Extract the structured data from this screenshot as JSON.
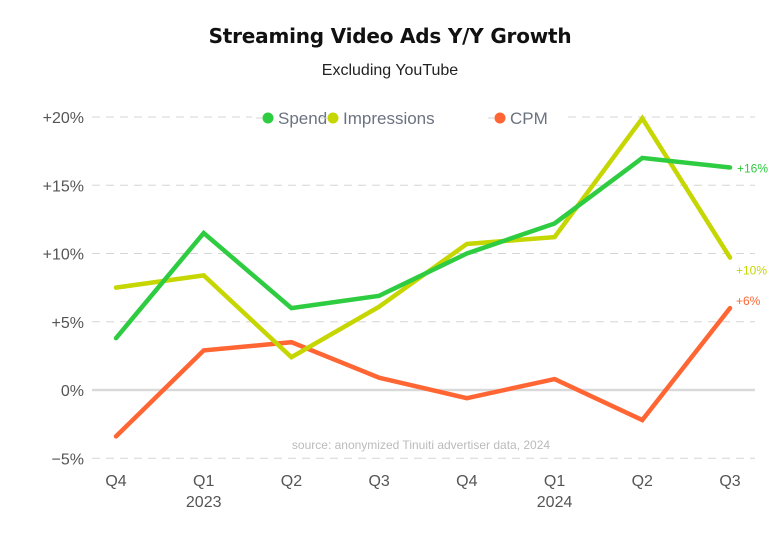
{
  "chart_data": {
    "type": "line",
    "title": "Streaming Video Ads Y/Y Growth",
    "subtitle": "Excluding YouTube",
    "xlabel": "",
    "ylabel": "",
    "categories": [
      "Q4",
      "Q1",
      "Q2",
      "Q3",
      "Q4",
      "Q1",
      "Q2",
      "Q3"
    ],
    "year_labels": [
      {
        "index": 1,
        "label": "2023"
      },
      {
        "index": 5,
        "label": "2024"
      }
    ],
    "y_ticks": [
      {
        "value": 20,
        "label": "+20%"
      },
      {
        "value": 15,
        "label": "+15%"
      },
      {
        "value": 10,
        "label": "+10%"
      },
      {
        "value": 5,
        "label": "+5%"
      },
      {
        "value": 0,
        "label": "0%"
      },
      {
        "value": -5,
        "label": "−5%"
      }
    ],
    "ylim": [
      -5,
      20
    ],
    "grid": true,
    "legend_position": "top-center",
    "series": [
      {
        "name": "Spend",
        "color": "#2ecc40",
        "values": [
          3.8,
          11.5,
          6.0,
          6.9,
          10.0,
          12.2,
          17.0,
          16.3
        ],
        "end_label": "+16%"
      },
      {
        "name": "Impressions",
        "color": "#c5d600",
        "values": [
          7.5,
          8.4,
          2.4,
          6.1,
          10.7,
          11.2,
          19.9,
          9.7
        ],
        "end_label": "+10%"
      },
      {
        "name": "CPM",
        "color": "#ff6633",
        "values": [
          -3.4,
          2.9,
          3.5,
          0.9,
          -0.6,
          0.8,
          -2.2,
          6.0
        ],
        "end_label": "+6%"
      }
    ],
    "annotation": "source: anonymized Tinuiti advertiser data, 2024"
  }
}
